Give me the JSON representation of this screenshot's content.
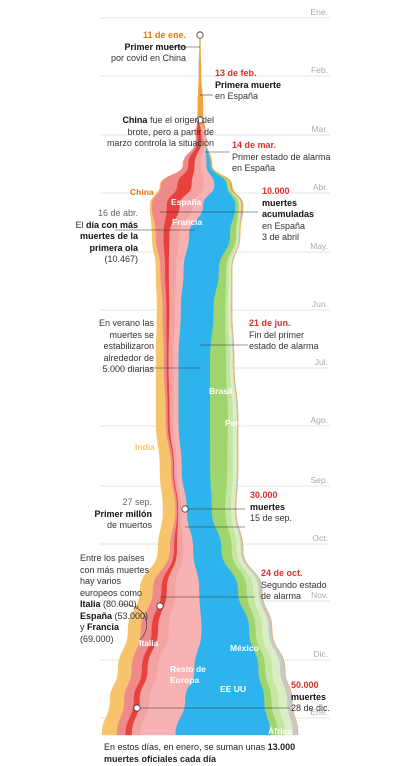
{
  "chart_data": {
    "type": "area",
    "subtype": "stacked-streamgraph-vertical",
    "time_axis": "vertical",
    "months": [
      "Ene.",
      "Feb.",
      "Mar.",
      "Abr.",
      "May.",
      "Jun.",
      "Jul.",
      "Ago.",
      "Sep.",
      "Oct.",
      "Nov.",
      "Dic.",
      "Ene."
    ],
    "unit": "muertes diarias",
    "series": [
      {
        "name": "India",
        "color": "#f7c46c"
      },
      {
        "name": "Italia",
        "color": "#f08a8a"
      },
      {
        "name": "España",
        "color": "#e8423e"
      },
      {
        "name": "Francia",
        "color": "#f4a3a3"
      },
      {
        "name": "Resto de Europa",
        "color": "#f7b3b3"
      },
      {
        "name": "EE UU",
        "color": "#2fb3ec"
      },
      {
        "name": "Brasil",
        "color": "#9fd56c"
      },
      {
        "name": "Perú",
        "color": "#c4e6a2"
      },
      {
        "name": "México",
        "color": "#d9eec4"
      },
      {
        "name": "África",
        "color": "#c8c8c8"
      },
      {
        "name": "China",
        "color": "#f0a33b"
      }
    ],
    "series_labels": [
      {
        "name": "China",
        "cls": "orange"
      },
      {
        "name": "España",
        "cls": "white"
      },
      {
        "name": "Francia",
        "cls": "white"
      },
      {
        "name": "Brasil",
        "cls": "white"
      },
      {
        "name": "Perú",
        "cls": "white"
      },
      {
        "name": "India",
        "cls": "orangelight"
      },
      {
        "name": "Italia",
        "cls": "white"
      },
      {
        "name": "México",
        "cls": "white"
      },
      {
        "name": "Resto de Europa",
        "cls": "white"
      },
      {
        "name": "EE UU",
        "cls": "white"
      },
      {
        "name": "África",
        "cls": "white"
      }
    ]
  },
  "annotations": {
    "a1": {
      "date": "11 de ene.",
      "title": "Primer muerto",
      "text": "por covid en China"
    },
    "a2": {
      "date": "13 de feb.",
      "title": "Primera muerte",
      "text": "en España"
    },
    "a3": {
      "highlight": "China",
      "text1": " fue el origen del",
      "text2": "brote, pero a partir de",
      "text3": "marzo controla la situación"
    },
    "a4": {
      "date": "14 de mar.",
      "text1": "Primer estado de alarma",
      "text2": "en España"
    },
    "a5": {
      "value": "10.000",
      "l1": "muertes",
      "l2": "acumuladas",
      "l3": "en España",
      "l4": "3 de abril"
    },
    "a6": {
      "date": "16 de abr.",
      "l1a": "El ",
      "l1b": "día con más",
      "l2": "muertes de la",
      "l3": "primera ola",
      "l4": "(10.467)"
    },
    "a7": {
      "l1": "En verano las",
      "l2": "muertes se",
      "l3": "estabilizaron",
      "l4": "alrededor de",
      "l5": "5.000 diarias"
    },
    "a8": {
      "date": "21 de jun.",
      "l1": "Fin del primer",
      "l2": "estado de alarma"
    },
    "a9": {
      "date": "27 sep.",
      "l1": "Primer millón",
      "l2": "de muertos"
    },
    "a10": {
      "value": "30.000",
      "l1": "muertes",
      "l2": "15 de sep."
    },
    "a11": {
      "l1": "Entre los países",
      "l2": "con más muertes",
      "l3": "hay varios",
      "l4": "europeos como",
      "it": "Italia",
      "itv": " (80.000),",
      "es": "España",
      "esv": " (53.000)",
      "y": "y ",
      "fr": "Francia",
      "frv": "(69.000)"
    },
    "a12": {
      "date": "24 de oct.",
      "l1": "Segundo estado",
      "l2": "de alarma"
    },
    "a13": {
      "value": "50.000",
      "l1": "muertes",
      "l2": "28 de dic."
    }
  },
  "footer": {
    "l1a": "En estos días, en enero, se suman unas ",
    "l1b": "13.000",
    "l2": "muertes oficiales cada día"
  },
  "colors": {
    "grid": "#dcdcdc",
    "orange": "#e07b12",
    "red": "#d9302c"
  }
}
